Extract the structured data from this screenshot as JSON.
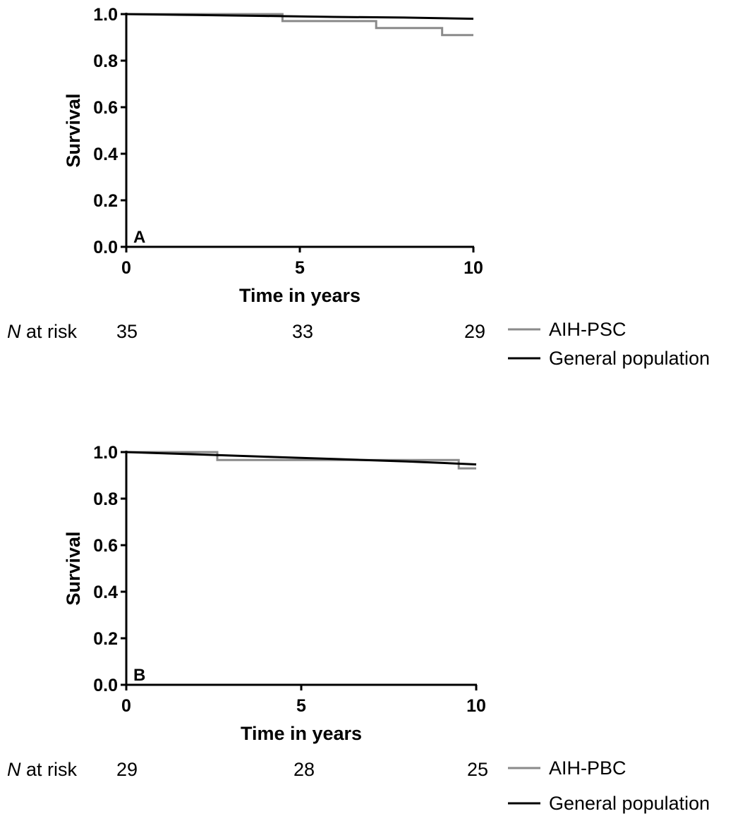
{
  "chart_data": [
    {
      "type": "line",
      "panel_label": "A",
      "xlabel": "Time in years",
      "ylabel": "Survival",
      "xlim": [
        0,
        10
      ],
      "ylim": [
        0,
        1
      ],
      "x_ticks": [
        "0",
        "5",
        "10"
      ],
      "y_ticks": [
        "0.0",
        "0.2",
        "0.4",
        "0.6",
        "0.8",
        "1.0"
      ],
      "series": [
        {
          "name": "AIH-PSC",
          "color": "#8a8a8a",
          "step": true,
          "x": [
            0,
            2.0,
            4.5,
            4.5,
            7.2,
            7.2,
            9.1,
            9.1,
            10.0
          ],
          "y": [
            1.0,
            1.0,
            1.0,
            0.97,
            0.97,
            0.94,
            0.94,
            0.91,
            0.91
          ]
        },
        {
          "name": "General population",
          "color": "#000000",
          "step": false,
          "x": [
            0,
            2,
            4,
            6,
            8,
            10
          ],
          "y": [
            1.0,
            0.996,
            0.992,
            0.988,
            0.985,
            0.98
          ]
        }
      ],
      "risk_table": {
        "label_italic": "N",
        "label_rest": " at risk",
        "x": [
          0,
          5,
          10
        ],
        "counts": [
          "35",
          "33",
          "29"
        ]
      }
    },
    {
      "type": "line",
      "panel_label": "B",
      "xlabel": "Time in years",
      "ylabel": "Survival",
      "xlim": [
        0,
        10
      ],
      "ylim": [
        0,
        1
      ],
      "x_ticks": [
        "0",
        "5",
        "10"
      ],
      "y_ticks": [
        "0.0",
        "0.2",
        "0.4",
        "0.6",
        "0.8",
        "1.0"
      ],
      "series": [
        {
          "name": "AIH-PBC",
          "color": "#8a8a8a",
          "step": true,
          "x": [
            0,
            2.6,
            2.6,
            9.5,
            9.5,
            10.0
          ],
          "y": [
            1.0,
            1.0,
            0.966,
            0.966,
            0.93,
            0.93
          ]
        },
        {
          "name": "General population",
          "color": "#000000",
          "step": false,
          "x": [
            0,
            2,
            4,
            6,
            8,
            10
          ],
          "y": [
            1.0,
            0.99,
            0.98,
            0.97,
            0.96,
            0.947
          ]
        }
      ],
      "risk_table": {
        "label_italic": "N",
        "label_rest": " at risk",
        "x": [
          0,
          5,
          10
        ],
        "counts": [
          "29",
          "28",
          "25"
        ]
      }
    }
  ]
}
